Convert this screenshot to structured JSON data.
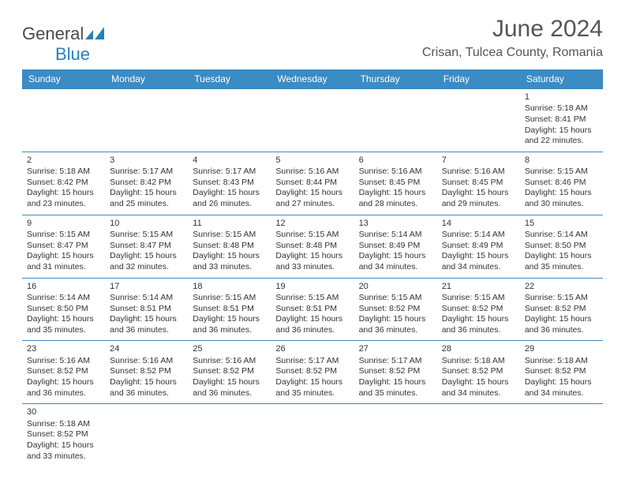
{
  "logo": {
    "part1": "General",
    "part2": "Blue"
  },
  "colors": {
    "header_bg": "#3b8bc4",
    "header_text": "#ffffff",
    "border": "#3b8bc4",
    "title_color": "#555555",
    "text_color": "#333333",
    "logo_gray": "#4a4a4a",
    "logo_blue": "#2c7fb8"
  },
  "header": {
    "title": "June 2024",
    "location": "Crisan, Tulcea County, Romania"
  },
  "day_headers": [
    "Sunday",
    "Monday",
    "Tuesday",
    "Wednesday",
    "Thursday",
    "Friday",
    "Saturday"
  ],
  "weeks": [
    [
      null,
      null,
      null,
      null,
      null,
      null,
      {
        "n": "1",
        "sr": "Sunrise: 5:18 AM",
        "ss": "Sunset: 8:41 PM",
        "d1": "Daylight: 15 hours",
        "d2": "and 22 minutes."
      }
    ],
    [
      {
        "n": "2",
        "sr": "Sunrise: 5:18 AM",
        "ss": "Sunset: 8:42 PM",
        "d1": "Daylight: 15 hours",
        "d2": "and 23 minutes."
      },
      {
        "n": "3",
        "sr": "Sunrise: 5:17 AM",
        "ss": "Sunset: 8:42 PM",
        "d1": "Daylight: 15 hours",
        "d2": "and 25 minutes."
      },
      {
        "n": "4",
        "sr": "Sunrise: 5:17 AM",
        "ss": "Sunset: 8:43 PM",
        "d1": "Daylight: 15 hours",
        "d2": "and 26 minutes."
      },
      {
        "n": "5",
        "sr": "Sunrise: 5:16 AM",
        "ss": "Sunset: 8:44 PM",
        "d1": "Daylight: 15 hours",
        "d2": "and 27 minutes."
      },
      {
        "n": "6",
        "sr": "Sunrise: 5:16 AM",
        "ss": "Sunset: 8:45 PM",
        "d1": "Daylight: 15 hours",
        "d2": "and 28 minutes."
      },
      {
        "n": "7",
        "sr": "Sunrise: 5:16 AM",
        "ss": "Sunset: 8:45 PM",
        "d1": "Daylight: 15 hours",
        "d2": "and 29 minutes."
      },
      {
        "n": "8",
        "sr": "Sunrise: 5:15 AM",
        "ss": "Sunset: 8:46 PM",
        "d1": "Daylight: 15 hours",
        "d2": "and 30 minutes."
      }
    ],
    [
      {
        "n": "9",
        "sr": "Sunrise: 5:15 AM",
        "ss": "Sunset: 8:47 PM",
        "d1": "Daylight: 15 hours",
        "d2": "and 31 minutes."
      },
      {
        "n": "10",
        "sr": "Sunrise: 5:15 AM",
        "ss": "Sunset: 8:47 PM",
        "d1": "Daylight: 15 hours",
        "d2": "and 32 minutes."
      },
      {
        "n": "11",
        "sr": "Sunrise: 5:15 AM",
        "ss": "Sunset: 8:48 PM",
        "d1": "Daylight: 15 hours",
        "d2": "and 33 minutes."
      },
      {
        "n": "12",
        "sr": "Sunrise: 5:15 AM",
        "ss": "Sunset: 8:48 PM",
        "d1": "Daylight: 15 hours",
        "d2": "and 33 minutes."
      },
      {
        "n": "13",
        "sr": "Sunrise: 5:14 AM",
        "ss": "Sunset: 8:49 PM",
        "d1": "Daylight: 15 hours",
        "d2": "and 34 minutes."
      },
      {
        "n": "14",
        "sr": "Sunrise: 5:14 AM",
        "ss": "Sunset: 8:49 PM",
        "d1": "Daylight: 15 hours",
        "d2": "and 34 minutes."
      },
      {
        "n": "15",
        "sr": "Sunrise: 5:14 AM",
        "ss": "Sunset: 8:50 PM",
        "d1": "Daylight: 15 hours",
        "d2": "and 35 minutes."
      }
    ],
    [
      {
        "n": "16",
        "sr": "Sunrise: 5:14 AM",
        "ss": "Sunset: 8:50 PM",
        "d1": "Daylight: 15 hours",
        "d2": "and 35 minutes."
      },
      {
        "n": "17",
        "sr": "Sunrise: 5:14 AM",
        "ss": "Sunset: 8:51 PM",
        "d1": "Daylight: 15 hours",
        "d2": "and 36 minutes."
      },
      {
        "n": "18",
        "sr": "Sunrise: 5:15 AM",
        "ss": "Sunset: 8:51 PM",
        "d1": "Daylight: 15 hours",
        "d2": "and 36 minutes."
      },
      {
        "n": "19",
        "sr": "Sunrise: 5:15 AM",
        "ss": "Sunset: 8:51 PM",
        "d1": "Daylight: 15 hours",
        "d2": "and 36 minutes."
      },
      {
        "n": "20",
        "sr": "Sunrise: 5:15 AM",
        "ss": "Sunset: 8:52 PM",
        "d1": "Daylight: 15 hours",
        "d2": "and 36 minutes."
      },
      {
        "n": "21",
        "sr": "Sunrise: 5:15 AM",
        "ss": "Sunset: 8:52 PM",
        "d1": "Daylight: 15 hours",
        "d2": "and 36 minutes."
      },
      {
        "n": "22",
        "sr": "Sunrise: 5:15 AM",
        "ss": "Sunset: 8:52 PM",
        "d1": "Daylight: 15 hours",
        "d2": "and 36 minutes."
      }
    ],
    [
      {
        "n": "23",
        "sr": "Sunrise: 5:16 AM",
        "ss": "Sunset: 8:52 PM",
        "d1": "Daylight: 15 hours",
        "d2": "and 36 minutes."
      },
      {
        "n": "24",
        "sr": "Sunrise: 5:16 AM",
        "ss": "Sunset: 8:52 PM",
        "d1": "Daylight: 15 hours",
        "d2": "and 36 minutes."
      },
      {
        "n": "25",
        "sr": "Sunrise: 5:16 AM",
        "ss": "Sunset: 8:52 PM",
        "d1": "Daylight: 15 hours",
        "d2": "and 36 minutes."
      },
      {
        "n": "26",
        "sr": "Sunrise: 5:17 AM",
        "ss": "Sunset: 8:52 PM",
        "d1": "Daylight: 15 hours",
        "d2": "and 35 minutes."
      },
      {
        "n": "27",
        "sr": "Sunrise: 5:17 AM",
        "ss": "Sunset: 8:52 PM",
        "d1": "Daylight: 15 hours",
        "d2": "and 35 minutes."
      },
      {
        "n": "28",
        "sr": "Sunrise: 5:18 AM",
        "ss": "Sunset: 8:52 PM",
        "d1": "Daylight: 15 hours",
        "d2": "and 34 minutes."
      },
      {
        "n": "29",
        "sr": "Sunrise: 5:18 AM",
        "ss": "Sunset: 8:52 PM",
        "d1": "Daylight: 15 hours",
        "d2": "and 34 minutes."
      }
    ],
    [
      {
        "n": "30",
        "sr": "Sunrise: 5:18 AM",
        "ss": "Sunset: 8:52 PM",
        "d1": "Daylight: 15 hours",
        "d2": "and 33 minutes."
      },
      null,
      null,
      null,
      null,
      null,
      null
    ]
  ]
}
